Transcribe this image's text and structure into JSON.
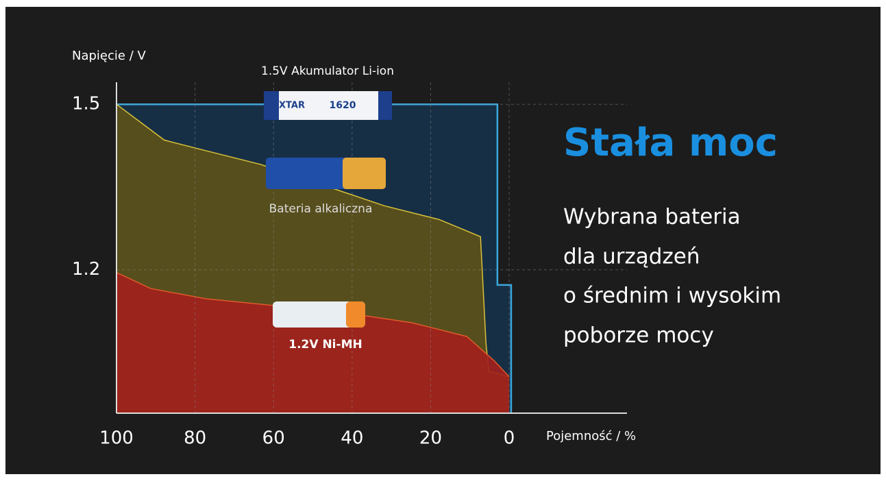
{
  "chart_data": {
    "type": "area",
    "heading": "Stała moc",
    "description_lines": [
      "Wybrana bateria",
      "dla urządzeń",
      "o średnim i wysokim",
      "poborze mocy"
    ],
    "y_label": "Napięcie / V",
    "x_label": "Pojemność / %",
    "battery_labels": [
      "XTAR",
      "1620"
    ],
    "xlim": [
      100,
      -30
    ],
    "xticks": [
      100,
      80,
      60,
      40,
      20,
      0
    ],
    "ylim": [
      0.94,
      1.54
    ],
    "yticks": [
      1.2,
      1.5
    ],
    "grid": true,
    "series": [
      {
        "name": "1.5V Akumulator Li-ion",
        "color": "#3aa8e0",
        "fill": "#17324a",
        "x": [
          100,
          3,
          3,
          -0.5,
          -0.5
        ],
        "values": [
          1.5,
          1.5,
          1.1725,
          1.1725,
          0.94
        ]
      },
      {
        "name": "Bateria alkaliczna",
        "color": "#d8c23a",
        "fill": "#5e5218",
        "x": [
          100,
          87.8,
          77.3,
          63.3,
          47.6,
          31.8,
          17.8,
          7.3,
          5.9,
          5.2,
          0
        ],
        "values": [
          1.5,
          1.435,
          1.416,
          1.391,
          1.354,
          1.316,
          1.291,
          1.26,
          1.066,
          1.016,
          1.006
        ]
      },
      {
        "name": "1.2V Ni-MH",
        "color": "#e05a2a",
        "fill": "#a3201d",
        "x": [
          100,
          91.3,
          77.3,
          59.8,
          42.3,
          24.8,
          10.8,
          3.8,
          0
        ],
        "values": [
          1.195,
          1.166,
          1.1475,
          1.135,
          1.1225,
          1.104,
          1.079,
          1.035,
          1.006
        ]
      }
    ]
  }
}
